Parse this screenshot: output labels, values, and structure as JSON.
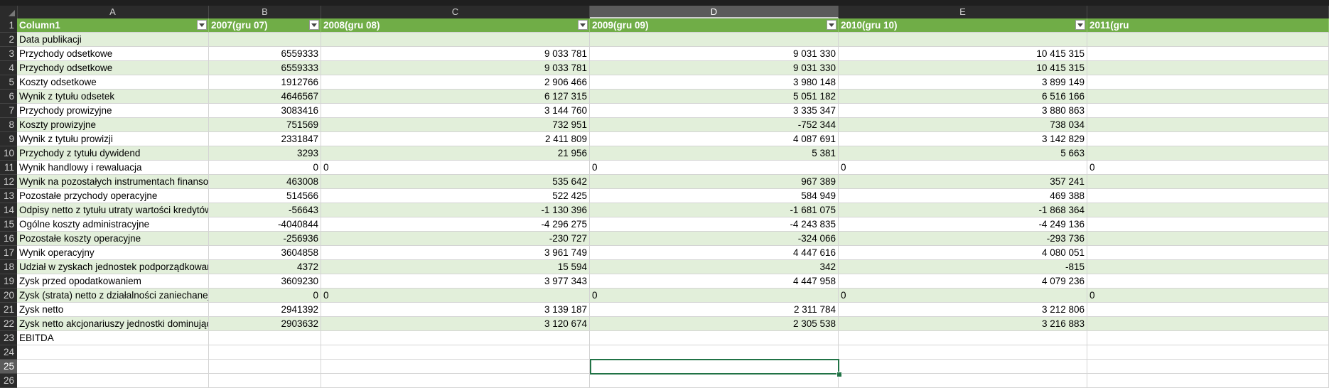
{
  "columns": [
    {
      "letter": "A",
      "width": 270
    },
    {
      "letter": "B",
      "width": 158
    },
    {
      "letter": "C",
      "width": 378
    },
    {
      "letter": "D",
      "width": 350,
      "selected": true
    },
    {
      "letter": "E",
      "width": 350
    },
    {
      "letter": "",
      "width": 340
    }
  ],
  "header_row": [
    "Column1",
    "2007(gru 07)",
    "2008(gru 08)",
    "2009(gru 09)",
    "2010(gru 10)",
    "2011(gru"
  ],
  "rows": [
    {
      "n": "2",
      "style": "band",
      "cells": [
        "Data publikacji",
        "",
        "",
        "",
        "",
        ""
      ]
    },
    {
      "n": "3",
      "style": "plain",
      "cells": [
        "Przychody odsetkowe",
        "6559333",
        "9 033 781",
        "9 031 330",
        "10 415 315",
        ""
      ]
    },
    {
      "n": "4",
      "style": "band",
      "cells": [
        "Przychody odsetkowe",
        "6559333",
        "9 033 781",
        "9 031 330",
        "10 415 315",
        ""
      ]
    },
    {
      "n": "5",
      "style": "plain",
      "cells": [
        "Koszty odsetkowe",
        "1912766",
        "2 906 466",
        "3 980 148",
        "3 899 149",
        ""
      ]
    },
    {
      "n": "6",
      "style": "band",
      "cells": [
        "Wynik z tytułu odsetek",
        "4646567",
        "6 127 315",
        "5 051 182",
        "6 516 166",
        ""
      ]
    },
    {
      "n": "7",
      "style": "plain",
      "cells": [
        "Przychody prowizyjne",
        "3083416",
        "3 144 760",
        "3 335 347",
        "3 880 863",
        ""
      ]
    },
    {
      "n": "8",
      "style": "band",
      "cells": [
        "Koszty prowizyjne",
        "751569",
        "732 951",
        "-752 344",
        "738 034",
        ""
      ]
    },
    {
      "n": "9",
      "style": "plain",
      "cells": [
        "Wynik z tytułu prowizji",
        "2331847",
        "2 411 809",
        "4 087 691",
        "3 142 829",
        ""
      ]
    },
    {
      "n": "10",
      "style": "band",
      "cells": [
        "Przychody z tytułu dywidend",
        "3293",
        "21 956",
        "5 381",
        "5 663",
        ""
      ]
    },
    {
      "n": "11",
      "style": "plain",
      "cells": [
        "Wynik handlowy i rewaluacja",
        "0",
        "0",
        "0",
        "0",
        "0"
      ],
      "zero_row": true
    },
    {
      "n": "12",
      "style": "band",
      "cells": [
        "Wynik na pozostałych instrumentach finansowych",
        "463008",
        "535 642",
        "967 389",
        "357 241",
        ""
      ]
    },
    {
      "n": "13",
      "style": "plain",
      "cells": [
        "Pozostałe przychody operacyjne",
        "514566",
        "522 425",
        "584 949",
        "469 388",
        ""
      ]
    },
    {
      "n": "14",
      "style": "band",
      "cells": [
        "Odpisy netto z tytułu utraty wartości kredytów",
        "-56643",
        "-1 130 396",
        "-1 681 075",
        "-1 868 364",
        ""
      ]
    },
    {
      "n": "15",
      "style": "plain",
      "cells": [
        "Ogólne koszty administracyjne",
        "-4040844",
        "-4 296 275",
        "-4 243 835",
        "-4 249 136",
        ""
      ]
    },
    {
      "n": "16",
      "style": "band",
      "cells": [
        "Pozostałe koszty operacyjne",
        "-256936",
        "-230 727",
        "-324 066",
        "-293 736",
        ""
      ]
    },
    {
      "n": "17",
      "style": "plain",
      "cells": [
        "Wynik operacyjny",
        "3604858",
        "3 961 749",
        "4 447 616",
        "4 080 051",
        ""
      ]
    },
    {
      "n": "18",
      "style": "band",
      "cells": [
        "Udział w zyskach jednostek podporządkowanych",
        "4372",
        "15 594",
        "342",
        "-815",
        ""
      ]
    },
    {
      "n": "19",
      "style": "plain",
      "cells": [
        "Zysk przed opodatkowaniem",
        "3609230",
        "3 977 343",
        "4 447 958",
        "4 079 236",
        ""
      ]
    },
    {
      "n": "20",
      "style": "band",
      "cells": [
        "Zysk (strata) netto z działalności zaniechanej",
        "0",
        "0",
        "0",
        "0",
        "0"
      ],
      "zero_row": true
    },
    {
      "n": "21",
      "style": "plain",
      "cells": [
        "Zysk netto",
        "2941392",
        "3 139 187",
        "2 311 784",
        "3 212 806",
        ""
      ]
    },
    {
      "n": "22",
      "style": "band",
      "cells": [
        "Zysk netto akcjonariuszy jednostki dominującej",
        "2903632",
        "3 120 674",
        "2 305 538",
        "3 216 883",
        ""
      ]
    },
    {
      "n": "23",
      "style": "plain",
      "cells": [
        "EBITDA",
        "",
        "",
        "",
        "",
        ""
      ]
    },
    {
      "n": "24",
      "style": "empty",
      "cells": [
        "",
        "",
        "",
        "",
        "",
        ""
      ]
    },
    {
      "n": "25",
      "style": "empty",
      "cells": [
        "",
        "",
        "",
        "",
        "",
        ""
      ],
      "selected": true
    },
    {
      "n": "26",
      "style": "empty",
      "cells": [
        "",
        "",
        "",
        "",
        "",
        ""
      ]
    }
  ],
  "header_row_number": "1",
  "active_cell": "D25"
}
